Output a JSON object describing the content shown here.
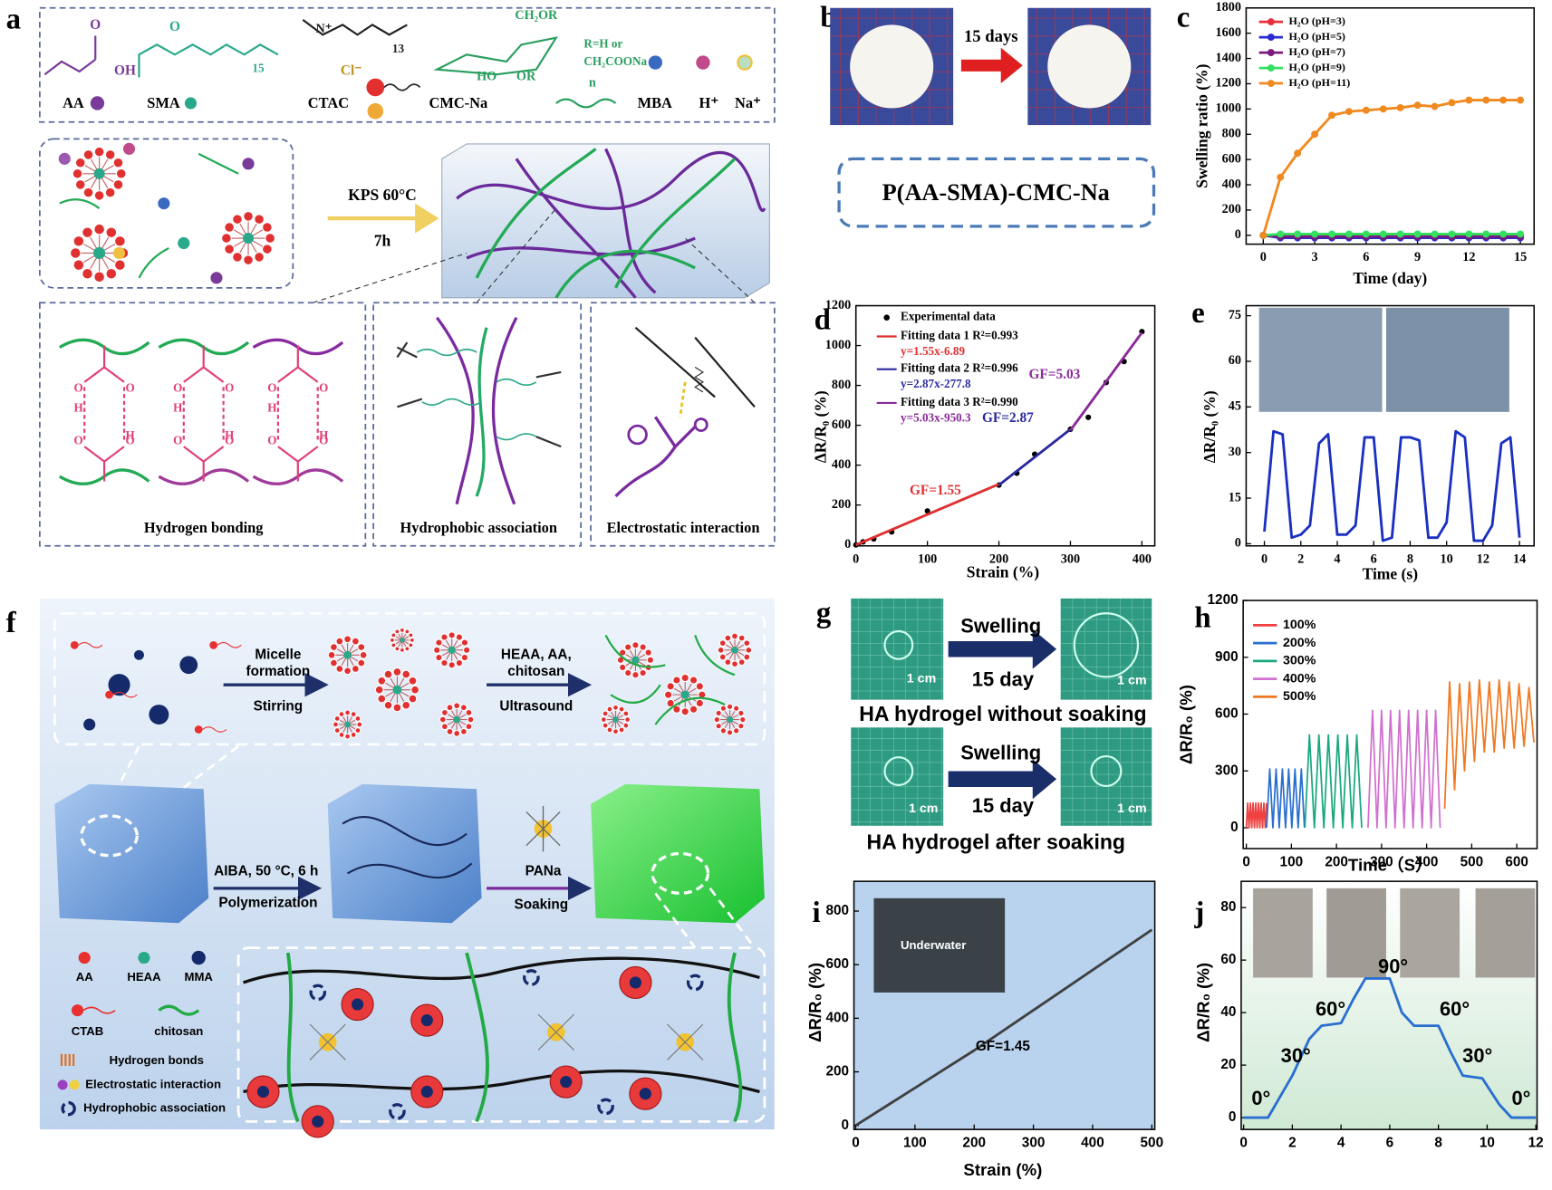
{
  "figure": {
    "a": {
      "label": "a",
      "molecules": [
        "AA",
        "SMA",
        "CTAC",
        "CMC-Na",
        "MBA",
        "H⁺",
        "Na⁺"
      ],
      "atoms": [
        "OH",
        "O",
        "O",
        "Cl⁻",
        "15",
        "13",
        "CH₂OR",
        "R=H or",
        "CH₂COONa",
        "HO",
        "OR",
        "n",
        "N⁺"
      ],
      "hbond": [
        "O",
        "H"
      ],
      "condition": [
        "KPS 60°C",
        "7h"
      ],
      "interactions": [
        "Hydrogen bonding",
        "Hydrophobic association",
        "Electrostatic interaction"
      ]
    },
    "b": {
      "label": "b",
      "arrow": "15 days",
      "name": "P(AA-SMA)-CMC-Na"
    },
    "f": {
      "label": "f",
      "steps": [
        "Micelle",
        "formation",
        "Stirring",
        "HEAA, AA,",
        "chitosan",
        "Ultrasound",
        "AIBA, 50 °C, 6 h",
        "Polymerization",
        "PANa",
        "Soaking"
      ],
      "legend": [
        "AA",
        "HEAA",
        "MMA",
        "CTAB",
        "chitosan",
        "Hydrogen bonds",
        "Electrostatic interaction",
        "Hydrophobic association"
      ]
    },
    "g": {
      "label": "g",
      "arrows": [
        "Swelling",
        "15 day",
        "Swelling",
        "15 day"
      ],
      "scale": [
        "1 cm",
        "1 cm",
        "1 cm",
        "1 cm"
      ],
      "captions": [
        "HA hydrogel without soaking",
        "HA hydrogel after soaking"
      ]
    }
  },
  "chart_data": [
    {
      "panel": "c",
      "type": "line",
      "markers": true,
      "xlabel": "Time (day)",
      "ylabel": "Swelling ratio (%)",
      "xlim": [
        -1,
        15.8
      ],
      "ylim": [
        -70,
        1800
      ],
      "xticks": [
        0,
        3,
        6,
        9,
        12,
        15
      ],
      "yticks": [
        0,
        200,
        400,
        600,
        800,
        1000,
        1200,
        1400,
        1600,
        1800
      ],
      "legend": "upper left",
      "series": [
        {
          "name": "H₂O (pH=3)",
          "color": "#e8303a",
          "x": [
            0,
            1,
            2,
            3,
            4,
            5,
            6,
            7,
            8,
            9,
            10,
            11,
            12,
            13,
            14,
            15
          ],
          "values": [
            0,
            5,
            5,
            5,
            5,
            5,
            5,
            5,
            5,
            5,
            5,
            5,
            5,
            5,
            5,
            5
          ]
        },
        {
          "name": "H₂O (pH=5)",
          "color": "#2a2ad0",
          "x": [
            0,
            1,
            2,
            3,
            4,
            5,
            6,
            7,
            8,
            9,
            10,
            11,
            12,
            13,
            14,
            15
          ],
          "values": [
            0,
            -20,
            -20,
            -20,
            -20,
            -20,
            -20,
            -20,
            -20,
            -20,
            -20,
            -20,
            -20,
            -20,
            -20,
            -20
          ]
        },
        {
          "name": "H₂O (pH=7)",
          "color": "#7a1a7a",
          "x": [
            0,
            1,
            2,
            3,
            4,
            5,
            6,
            7,
            8,
            9,
            10,
            11,
            12,
            13,
            14,
            15
          ],
          "values": [
            0,
            -10,
            -10,
            -10,
            -10,
            -10,
            -10,
            -10,
            -10,
            -10,
            -10,
            -10,
            -10,
            -10,
            -10,
            -10
          ]
        },
        {
          "name": "H₂O (pH=9)",
          "color": "#33e060",
          "x": [
            0,
            1,
            2,
            3,
            4,
            5,
            6,
            7,
            8,
            9,
            10,
            11,
            12,
            13,
            14,
            15
          ],
          "values": [
            0,
            10,
            10,
            10,
            10,
            10,
            10,
            10,
            10,
            10,
            10,
            10,
            10,
            10,
            10,
            10
          ]
        },
        {
          "name": "H₂O (pH=11)",
          "color": "#f08a20",
          "x": [
            0,
            1,
            2,
            3,
            4,
            5,
            6,
            7,
            8,
            9,
            10,
            11,
            12,
            13,
            14,
            15
          ],
          "values": [
            0,
            460,
            650,
            800,
            950,
            980,
            990,
            1000,
            1010,
            1030,
            1020,
            1050,
            1070,
            1070,
            1070,
            1070
          ]
        }
      ]
    },
    {
      "panel": "d",
      "type": "line",
      "xlabel": "Strain  (%)",
      "ylabel": "ΔR/R₀ (%)",
      "xlim": [
        0,
        418
      ],
      "ylim": [
        -5,
        1200
      ],
      "xticks": [
        0,
        100,
        200,
        300,
        400
      ],
      "yticks": [
        0,
        200,
        400,
        600,
        800,
        1000,
        1200
      ],
      "legend": "upper left",
      "series": [
        {
          "name": "Experimental data",
          "type": "scatter",
          "color": "#000000",
          "x": [
            0,
            10,
            25,
            50,
            100,
            200,
            225,
            250,
            300,
            325,
            350,
            375,
            400
          ],
          "values": [
            0,
            15,
            30,
            65,
            170,
            300,
            360,
            455,
            580,
            640,
            815,
            920,
            1070
          ]
        },
        {
          "name": "Fitting data 1 R²=0.993",
          "equation": "y=1.55x-6.89",
          "color": "#e03030",
          "x": [
            0,
            200
          ],
          "values": [
            0,
            305
          ]
        },
        {
          "name": "Fitting data 2 R²=0.996",
          "equation": "y=2.87x-277.8",
          "color": "#2a2aa0",
          "x": [
            200,
            300
          ],
          "values": [
            300,
            580
          ]
        },
        {
          "name": "Fitting data 3 R²=0.990",
          "equation": "y=5.03x-950.3",
          "color": "#8a2a9a",
          "x": [
            300,
            400
          ],
          "values": [
            575,
            1065
          ]
        }
      ],
      "annotations": [
        {
          "text": "GF=1.55",
          "color": "#e03030"
        },
        {
          "text": "GF=2.87",
          "color": "#2a2aa0"
        },
        {
          "text": "GF=5.03",
          "color": "#8a2a9a"
        }
      ]
    },
    {
      "panel": "e",
      "type": "line",
      "xlabel": "Time (s)",
      "ylabel": "ΔR/R₀ (%)",
      "xlim": [
        -1,
        14.8
      ],
      "ylim": [
        -0.7,
        78.3
      ],
      "xticks": [
        0,
        2,
        4,
        6,
        8,
        10,
        12,
        14
      ],
      "yticks": [
        0,
        15,
        30,
        45,
        60,
        75
      ],
      "series": [
        {
          "color": "#1a30c0",
          "x": [
            0,
            0.5,
            1,
            1.5,
            2,
            2.5,
            3,
            3.5,
            4,
            4.5,
            5,
            5.5,
            6,
            6.5,
            7,
            7.5,
            8,
            8.5,
            9,
            9.5,
            10,
            10.5,
            11,
            11.5,
            12,
            12.5,
            13,
            13.5,
            14
          ],
          "values": [
            4,
            37,
            36,
            2,
            3,
            6,
            33,
            36,
            3,
            3,
            6,
            35,
            35,
            1,
            2,
            35,
            35,
            34,
            2,
            2,
            7,
            37,
            35,
            1,
            1,
            6,
            33,
            35,
            2
          ]
        }
      ]
    },
    {
      "panel": "h",
      "type": "line",
      "xlabel": "Time（S）",
      "ylabel": "ΔR/R₀ (%)",
      "xlim": [
        -7,
        645
      ],
      "ylim": [
        -110,
        1200
      ],
      "xticks": [
        0,
        100,
        200,
        300,
        400,
        500,
        600
      ],
      "yticks": [
        0,
        300,
        600,
        900,
        1200
      ],
      "legend": "upper left",
      "series": [
        {
          "name": "100%",
          "color": "#f04040",
          "x": [
            0,
            3,
            6,
            9,
            12,
            15,
            18,
            21,
            24,
            27,
            30,
            33,
            36,
            39,
            42,
            45
          ],
          "values": [
            0,
            130,
            0,
            130,
            0,
            130,
            0,
            130,
            0,
            130,
            0,
            130,
            0,
            130,
            0,
            130
          ]
        },
        {
          "name": "200%",
          "color": "#2a6fd0",
          "x": [
            45,
            52,
            59,
            66,
            73,
            80,
            87,
            94,
            101,
            108,
            115,
            122,
            129
          ],
          "values": [
            0,
            310,
            0,
            310,
            0,
            310,
            0,
            310,
            0,
            310,
            0,
            310,
            0
          ]
        },
        {
          "name": "300%",
          "color": "#1aa880",
          "x": [
            130,
            140,
            151,
            161,
            172,
            182,
            193,
            203,
            214,
            224,
            235,
            245,
            256
          ],
          "values": [
            0,
            490,
            0,
            490,
            0,
            490,
            0,
            490,
            0,
            490,
            0,
            490,
            0
          ]
        },
        {
          "name": "400%",
          "color": "#d070d0",
          "x": [
            270,
            280,
            290,
            300,
            310,
            320,
            330,
            340,
            350,
            360,
            370,
            380,
            390,
            400,
            410,
            420,
            430
          ],
          "values": [
            0,
            620,
            0,
            620,
            0,
            620,
            0,
            620,
            0,
            620,
            0,
            620,
            0,
            620,
            0,
            620,
            0
          ]
        },
        {
          "name": "500%",
          "color": "#f07820",
          "x": [
            440,
            451,
            462,
            473,
            484,
            495,
            506,
            517,
            528,
            539,
            550,
            561,
            572,
            583,
            594,
            605,
            616,
            627,
            638
          ],
          "values": [
            100,
            770,
            200,
            760,
            300,
            770,
            350,
            780,
            400,
            770,
            400,
            780,
            420,
            770,
            420,
            760,
            430,
            740,
            450
          ]
        }
      ]
    },
    {
      "panel": "i",
      "type": "line",
      "xlabel": "Strain (%)",
      "ylabel": "ΔR/R₀ (%)",
      "xlim": [
        -3,
        505
      ],
      "ylim": [
        -15,
        911
      ],
      "xticks": [
        0,
        100,
        200,
        300,
        400,
        500
      ],
      "yticks": [
        0,
        200,
        400,
        600,
        800
      ],
      "inset_text": "Underwater",
      "series": [
        {
          "color": "#404040",
          "x": [
            0,
            50,
            100,
            150,
            200,
            250,
            300,
            350,
            400,
            450,
            500
          ],
          "values": [
            0,
            70,
            140,
            210,
            280,
            355,
            430,
            505,
            580,
            655,
            730
          ]
        }
      ],
      "annotations": [
        {
          "text": "GF=1.45",
          "color": "#000000"
        }
      ]
    },
    {
      "panel": "j",
      "type": "line",
      "ylabel": "ΔR/R₀ (%)",
      "xlim": [
        -0.1,
        12.05
      ],
      "ylim": [
        -4.5,
        90
      ],
      "xticks": [
        0,
        2,
        4,
        6,
        8,
        10,
        12
      ],
      "yticks": [
        0,
        20,
        40,
        60,
        80
      ],
      "series": [
        {
          "color": "#2a6fd0",
          "x": [
            0,
            1,
            1.5,
            2,
            2.3,
            2.7,
            3.2,
            4,
            4.5,
            5,
            6,
            6.5,
            7,
            8,
            8.5,
            9,
            9.8,
            10.5,
            11,
            12
          ],
          "values": [
            0,
            0,
            8,
            16,
            22,
            30,
            35,
            36,
            45,
            53,
            53,
            40,
            35,
            35,
            25,
            16,
            15,
            5,
            0,
            0
          ]
        }
      ],
      "annotations": [
        {
          "text": "0°",
          "color": "#000000"
        },
        {
          "text": "30°",
          "color": "#000000"
        },
        {
          "text": "60°",
          "color": "#000000"
        },
        {
          "text": "90°",
          "color": "#000000"
        },
        {
          "text": "60°",
          "color": "#000000"
        },
        {
          "text": "30°",
          "color": "#000000"
        },
        {
          "text": "0°",
          "color": "#000000"
        }
      ]
    }
  ]
}
